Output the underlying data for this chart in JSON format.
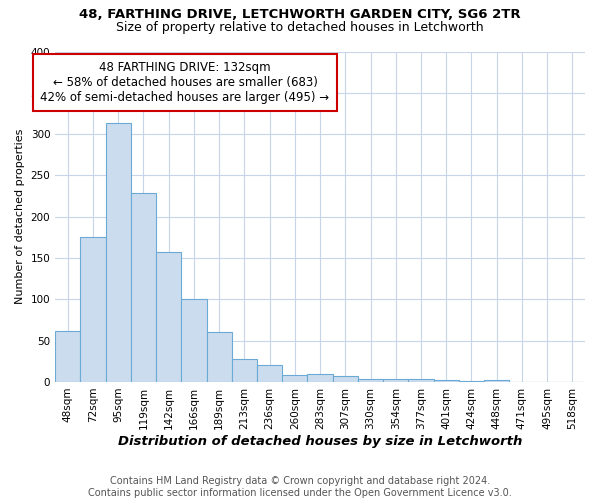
{
  "title_line1": "48, FARTHING DRIVE, LETCHWORTH GARDEN CITY, SG6 2TR",
  "title_line2": "Size of property relative to detached houses in Letchworth",
  "xlabel": "Distribution of detached houses by size in Letchworth",
  "ylabel": "Number of detached properties",
  "annotation_line1": "48 FARTHING DRIVE: 132sqm",
  "annotation_line2": "← 58% of detached houses are smaller (683)",
  "annotation_line3": "42% of semi-detached houses are larger (495) →",
  "footer1": "Contains HM Land Registry data © Crown copyright and database right 2024.",
  "footer2": "Contains public sector information licensed under the Open Government Licence v3.0.",
  "bar_values": [
    62,
    175,
    314,
    229,
    157,
    101,
    61,
    28,
    21,
    9,
    10,
    7,
    4,
    4,
    3,
    2,
    1,
    2,
    0,
    0,
    0
  ],
  "bar_color": "#ccdcef",
  "bar_edge_color": "#6aaad4",
  "ann_box_color": "#cc0000",
  "ylim_max": 400,
  "yticks": [
    0,
    50,
    100,
    150,
    200,
    250,
    300,
    350,
    400
  ],
  "xtick_labels": [
    "48sqm",
    "72sqm",
    "95sqm",
    "119sqm",
    "142sqm",
    "166sqm",
    "189sqm",
    "213sqm",
    "236sqm",
    "260sqm",
    "283sqm",
    "307sqm",
    "330sqm",
    "354sqm",
    "377sqm",
    "401sqm",
    "424sqm",
    "448sqm",
    "471sqm",
    "495sqm",
    "518sqm"
  ],
  "background_color": "#ffffff",
  "grid_color": "#c8d4e8",
  "title_fontsize": 9.5,
  "subtitle_fontsize": 9.0,
  "xlabel_fontsize": 9.5,
  "ylabel_fontsize": 8.0,
  "tick_fontsize": 7.5,
  "ann_fontsize": 8.5,
  "footer_fontsize": 7.0
}
